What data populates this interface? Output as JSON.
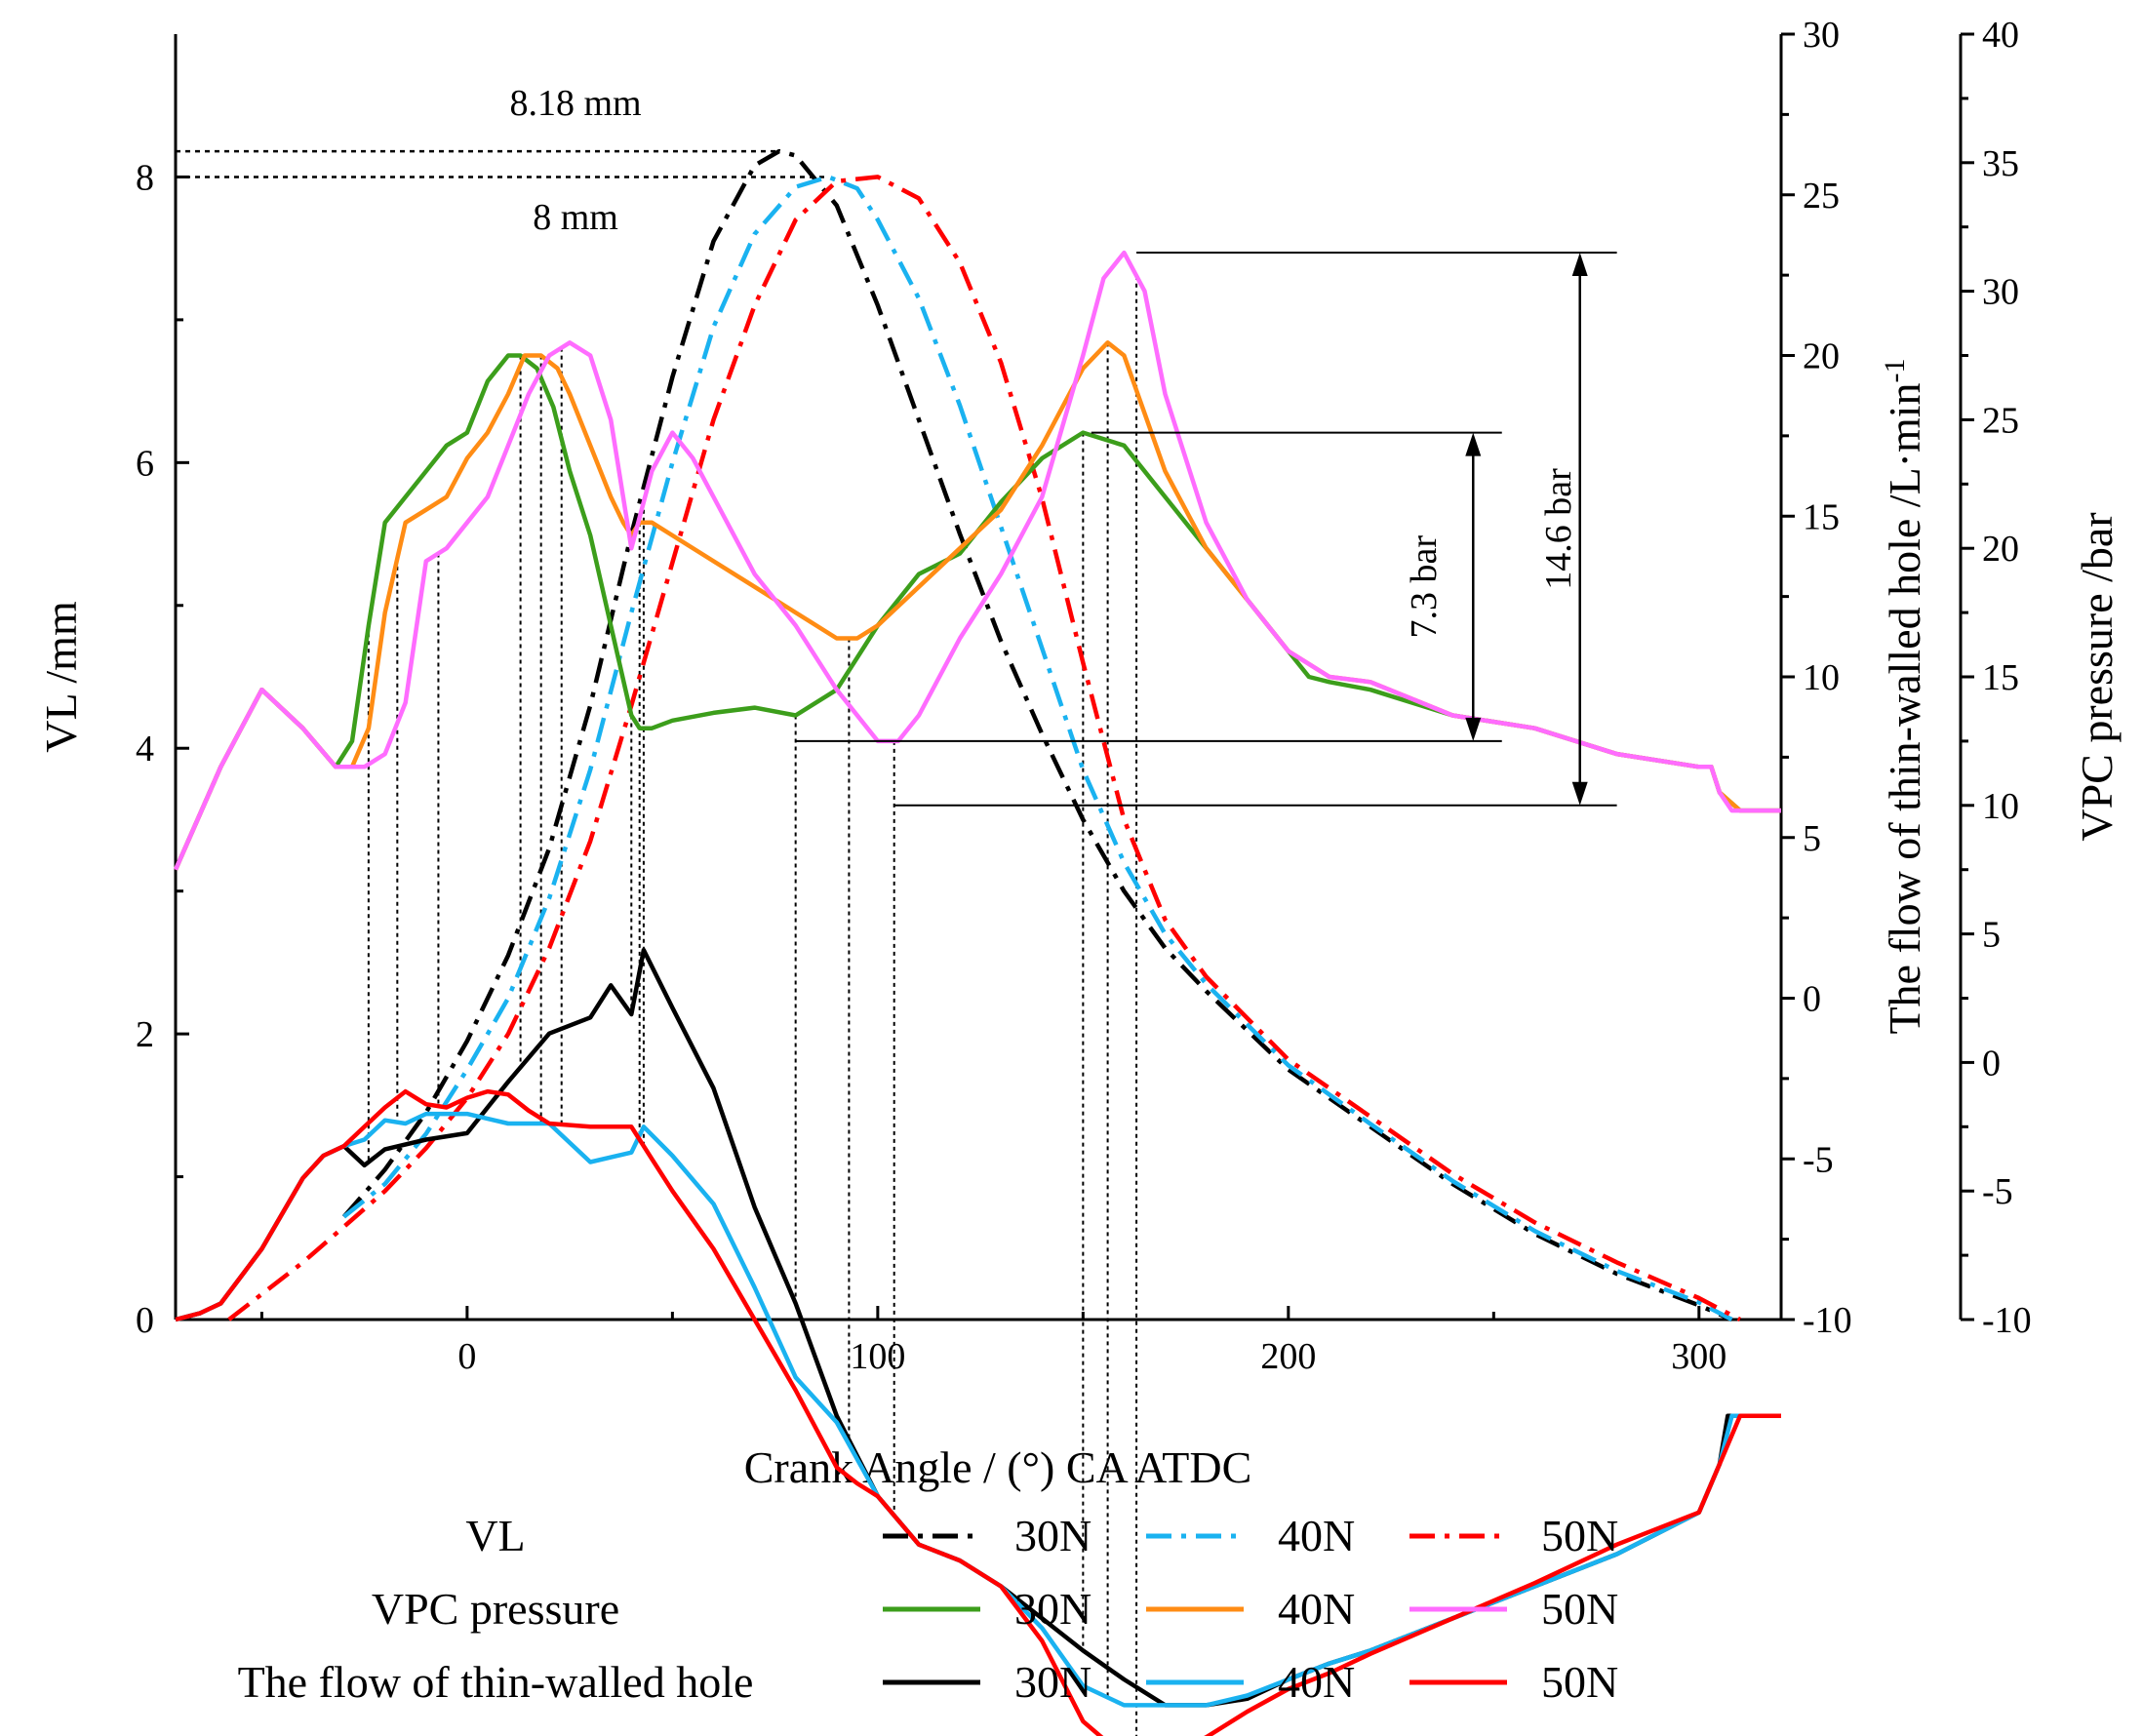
{
  "chart_data": {
    "type": "line",
    "xlabel": "Crank Angle  / (°) CA ATDC",
    "ylabel_left": "VL  /mm",
    "ylabel_right1": "The flow of thin-walled hole /L·min",
    "ylabel_right1_sup": "-1",
    "ylabel_right2": "VPC pressure /bar",
    "x_ticks": [
      0,
      100,
      200,
      300
    ],
    "xlim": [
      -71,
      320
    ],
    "axes": {
      "left": {
        "range": [
          0,
          9
        ],
        "ticks": [
          0,
          2,
          4,
          6,
          8
        ]
      },
      "right1": {
        "range": [
          -10,
          30
        ],
        "ticks": [
          -10,
          -5,
          0,
          5,
          10,
          15,
          20,
          25,
          30
        ]
      },
      "right2": {
        "range": [
          -10,
          40
        ],
        "ticks": [
          -10,
          -5,
          0,
          5,
          10,
          15,
          20,
          25,
          30,
          35,
          40
        ]
      }
    },
    "legend": {
      "placement": "bottom",
      "groups": [
        "VL",
        "VPC pressure",
        "The flow of thin-walled hole"
      ],
      "entries": [
        "30N",
        "40N",
        "50N"
      ]
    },
    "annotations": {
      "peak_high": "8.18 mm",
      "peak_low": "8 mm",
      "delta_small": "7.3 bar",
      "delta_large": "14.6 bar"
    },
    "colors": {
      "vl_30": "#000000",
      "vl_40": "#1ab2f0",
      "vl_50": "#ff0000",
      "vpc_30": "#3c9e1b",
      "vpc_40": "#ff8c14",
      "vpc_50": "#ff6cff",
      "flow_30": "#000000",
      "flow_40": "#1ab2f0",
      "flow_50": "#ff0000"
    },
    "series": [
      {
        "group": "VL",
        "name": "30N",
        "axis": "left",
        "style": "dashdot",
        "x": [
          -30,
          -20,
          -10,
          0,
          10,
          20,
          30,
          40,
          50,
          60,
          70,
          76,
          80,
          90,
          100,
          110,
          120,
          130,
          140,
          150,
          160,
          170,
          180,
          200,
          220,
          240,
          260,
          280,
          300,
          308
        ],
        "y": [
          0.72,
          1.05,
          1.45,
          1.95,
          2.55,
          3.3,
          4.3,
          5.5,
          6.6,
          7.55,
          8.08,
          8.18,
          8.15,
          7.8,
          7.1,
          6.3,
          5.5,
          4.75,
          4.1,
          3.5,
          3.0,
          2.6,
          2.3,
          1.75,
          1.35,
          0.95,
          0.6,
          0.32,
          0.1,
          0.0
        ]
      },
      {
        "group": "VL",
        "name": "40N",
        "axis": "left",
        "style": "dashdot",
        "x": [
          -30,
          -20,
          -10,
          0,
          10,
          20,
          30,
          40,
          50,
          60,
          70,
          80,
          88,
          95,
          100,
          110,
          120,
          130,
          140,
          150,
          160,
          170,
          180,
          200,
          220,
          240,
          260,
          280,
          300,
          308
        ],
        "y": [
          0.72,
          0.95,
          1.3,
          1.75,
          2.25,
          2.95,
          3.85,
          4.95,
          6.0,
          6.95,
          7.6,
          7.93,
          8.0,
          7.92,
          7.7,
          7.15,
          6.4,
          5.55,
          4.7,
          3.85,
          3.2,
          2.7,
          2.35,
          1.78,
          1.37,
          0.97,
          0.62,
          0.34,
          0.12,
          0.0
        ]
      },
      {
        "group": "VL",
        "name": "50N",
        "axis": "left",
        "style": "dashdot",
        "x": [
          -58,
          -40,
          -30,
          -20,
          -10,
          0,
          10,
          20,
          30,
          40,
          50,
          60,
          70,
          80,
          90,
          100,
          110,
          120,
          130,
          140,
          150,
          160,
          170,
          180,
          200,
          220,
          240,
          260,
          280,
          300,
          310
        ],
        "y": [
          0.0,
          0.4,
          0.65,
          0.9,
          1.2,
          1.55,
          2.0,
          2.6,
          3.35,
          4.3,
          5.3,
          6.3,
          7.1,
          7.7,
          7.97,
          8.0,
          7.85,
          7.4,
          6.7,
          5.75,
          4.6,
          3.5,
          2.8,
          2.4,
          1.82,
          1.42,
          1.02,
          0.68,
          0.4,
          0.15,
          0.0
        ]
      },
      {
        "group": "VPC pressure",
        "name": "30N",
        "axis": "right2",
        "style": "solid",
        "x": [
          -71,
          -60,
          -50,
          -40,
          -32,
          -28,
          -24,
          -20,
          -15,
          -10,
          -5,
          0,
          5,
          10,
          13,
          17,
          21,
          25,
          30,
          35,
          40,
          42,
          45,
          50,
          60,
          70,
          80,
          90,
          100,
          110,
          120,
          130,
          140,
          150,
          160,
          170,
          180,
          190,
          200,
          205,
          210,
          220,
          240,
          260,
          280,
          300,
          303,
          305,
          310,
          320
        ],
        "y": [
          7.5,
          11.5,
          14.5,
          13,
          11.5,
          12.5,
          17,
          21,
          22,
          23,
          24,
          24.5,
          26.5,
          27.5,
          27.5,
          27,
          25.5,
          23,
          20.5,
          17,
          13.5,
          13,
          13,
          13.3,
          13.6,
          13.8,
          13.5,
          14.5,
          17,
          19,
          19.8,
          21.8,
          23.5,
          24.5,
          24,
          22,
          20,
          18,
          16,
          15,
          14.8,
          14.5,
          13.5,
          13,
          12,
          11.5,
          11.5,
          10.5,
          9.8,
          9.8
        ]
      },
      {
        "group": "VPC pressure",
        "name": "40N",
        "axis": "right2",
        "style": "solid",
        "x": [
          -71,
          -60,
          -50,
          -40,
          -32,
          -28,
          -24,
          -20,
          -15,
          -10,
          -5,
          0,
          5,
          10,
          14,
          18,
          22,
          25,
          30,
          35,
          38,
          40,
          42,
          45,
          50,
          60,
          70,
          80,
          90,
          95,
          100,
          110,
          120,
          130,
          140,
          150,
          156,
          160,
          170,
          180,
          190,
          200,
          210,
          220,
          240,
          260,
          280,
          300,
          303,
          305,
          310,
          320
        ],
        "y": [
          7.5,
          11.5,
          14.5,
          13,
          11.5,
          11.5,
          13,
          17.5,
          21,
          21.5,
          22,
          23.5,
          24.5,
          26,
          27.5,
          27.5,
          27,
          26,
          24,
          22,
          21,
          20.5,
          21,
          21,
          20.5,
          19.5,
          18.5,
          17.5,
          16.5,
          16.5,
          17,
          18.5,
          20,
          21.5,
          24,
          27,
          28,
          27.5,
          23,
          20,
          18,
          16,
          15,
          14.8,
          13.5,
          13,
          12,
          11.5,
          11.5,
          10.5,
          9.8,
          9.8
        ]
      },
      {
        "group": "VPC pressure",
        "name": "50N",
        "axis": "right2",
        "style": "solid",
        "x": [
          -71,
          -60,
          -50,
          -40,
          -32,
          -25,
          -20,
          -15,
          -10,
          -5,
          0,
          5,
          10,
          15,
          20,
          25,
          30,
          35,
          40,
          45,
          50,
          55,
          60,
          70,
          80,
          90,
          100,
          105,
          110,
          120,
          130,
          140,
          150,
          155,
          160,
          165,
          170,
          180,
          190,
          200,
          210,
          220,
          240,
          260,
          280,
          300,
          303,
          305,
          308,
          312,
          320
        ],
        "y": [
          7.5,
          11.5,
          14.5,
          13,
          11.5,
          11.5,
          12,
          14,
          19.5,
          20,
          21,
          22,
          24,
          26,
          27.5,
          28,
          27.5,
          25,
          20,
          23,
          24.5,
          23.5,
          22,
          19,
          17,
          14.5,
          12.5,
          12.5,
          13.5,
          16.5,
          19,
          22,
          27.5,
          30.5,
          31.5,
          30,
          26,
          21,
          18,
          16,
          15,
          14.8,
          13.5,
          13,
          12,
          11.5,
          11.5,
          10.5,
          9.8,
          9.8,
          9.8
        ]
      },
      {
        "group": "The flow of thin-walled hole",
        "name": "30N",
        "axis": "right1",
        "style": "solid",
        "x": [
          -71,
          -65,
          -60,
          -50,
          -40,
          -35,
          -30,
          -25,
          -20,
          -10,
          0,
          5,
          10,
          20,
          30,
          35,
          40,
          43,
          50,
          60,
          70,
          75,
          80,
          90,
          100,
          110,
          120,
          130,
          140,
          150,
          160,
          170,
          175,
          180,
          190,
          200,
          210,
          220,
          240,
          260,
          280,
          300,
          305,
          307,
          310,
          320
        ],
        "y": [
          -10,
          -9.8,
          -9.5,
          -7.8,
          -5.6,
          -4.9,
          -4.6,
          -5.2,
          -4.7,
          -4.4,
          -4.2,
          -3.4,
          -2.6,
          -1.1,
          -0.6,
          0.4,
          -0.5,
          1.5,
          -0.3,
          -2.8,
          -6.5,
          -8.0,
          -9.5,
          -13.0,
          -15.5,
          -17.0,
          -17.5,
          -18.3,
          -19.3,
          -20.3,
          -21.2,
          -22.0,
          -22.0,
          -22.0,
          -21.8,
          -21.2,
          -20.7,
          -20.3,
          -19.3,
          -18.3,
          -17.3,
          -16.0,
          -14.5,
          -13.0,
          -13.0,
          -13.0
        ]
      },
      {
        "group": "The flow of thin-walled hole",
        "name": "40N",
        "axis": "right1",
        "style": "solid",
        "x": [
          -71,
          -65,
          -60,
          -50,
          -40,
          -35,
          -30,
          -25,
          -20,
          -15,
          -10,
          0,
          10,
          20,
          30,
          40,
          43,
          50,
          60,
          70,
          80,
          90,
          100,
          110,
          120,
          130,
          140,
          150,
          160,
          170,
          180,
          190,
          200,
          210,
          220,
          240,
          260,
          280,
          300,
          305,
          308,
          310,
          320
        ],
        "y": [
          -10,
          -9.8,
          -9.5,
          -7.8,
          -5.6,
          -4.9,
          -4.6,
          -4.4,
          -3.8,
          -3.9,
          -3.6,
          -3.6,
          -3.9,
          -3.9,
          -5.1,
          -4.8,
          -4.0,
          -4.9,
          -6.4,
          -9.0,
          -11.8,
          -13.2,
          -15.5,
          -17.0,
          -17.5,
          -18.3,
          -19.6,
          -21.4,
          -22.0,
          -22.0,
          -22.0,
          -21.7,
          -21.2,
          -20.7,
          -20.3,
          -19.3,
          -18.3,
          -17.3,
          -16.0,
          -14.5,
          -13.0,
          -13.0,
          -13.0
        ]
      },
      {
        "group": "The flow of thin-walled hole",
        "name": "50N",
        "axis": "right1",
        "style": "solid",
        "x": [
          -71,
          -65,
          -60,
          -50,
          -40,
          -35,
          -30,
          -25,
          -20,
          -15,
          -10,
          -5,
          0,
          5,
          10,
          15,
          20,
          30,
          40,
          45,
          50,
          60,
          70,
          80,
          90,
          95,
          100,
          110,
          120,
          130,
          140,
          150,
          160,
          165,
          170,
          180,
          190,
          200,
          210,
          220,
          240,
          260,
          280,
          300,
          305,
          310,
          320
        ],
        "y": [
          -10,
          -9.8,
          -9.5,
          -7.8,
          -5.6,
          -4.9,
          -4.6,
          -4.0,
          -3.4,
          -2.9,
          -3.3,
          -3.4,
          -3.1,
          -2.9,
          -3.0,
          -3.5,
          -3.9,
          -4.0,
          -4.0,
          -5.0,
          -6.0,
          -7.8,
          -10.0,
          -12.2,
          -14.6,
          -15.1,
          -15.5,
          -17.0,
          -17.5,
          -18.3,
          -20.0,
          -22.5,
          -23.6,
          -23.8,
          -23.6,
          -23.0,
          -22.2,
          -21.5,
          -21.0,
          -20.4,
          -19.3,
          -18.2,
          -17.0,
          -16.0,
          -14.5,
          -13.0,
          -13.0
        ]
      }
    ]
  }
}
